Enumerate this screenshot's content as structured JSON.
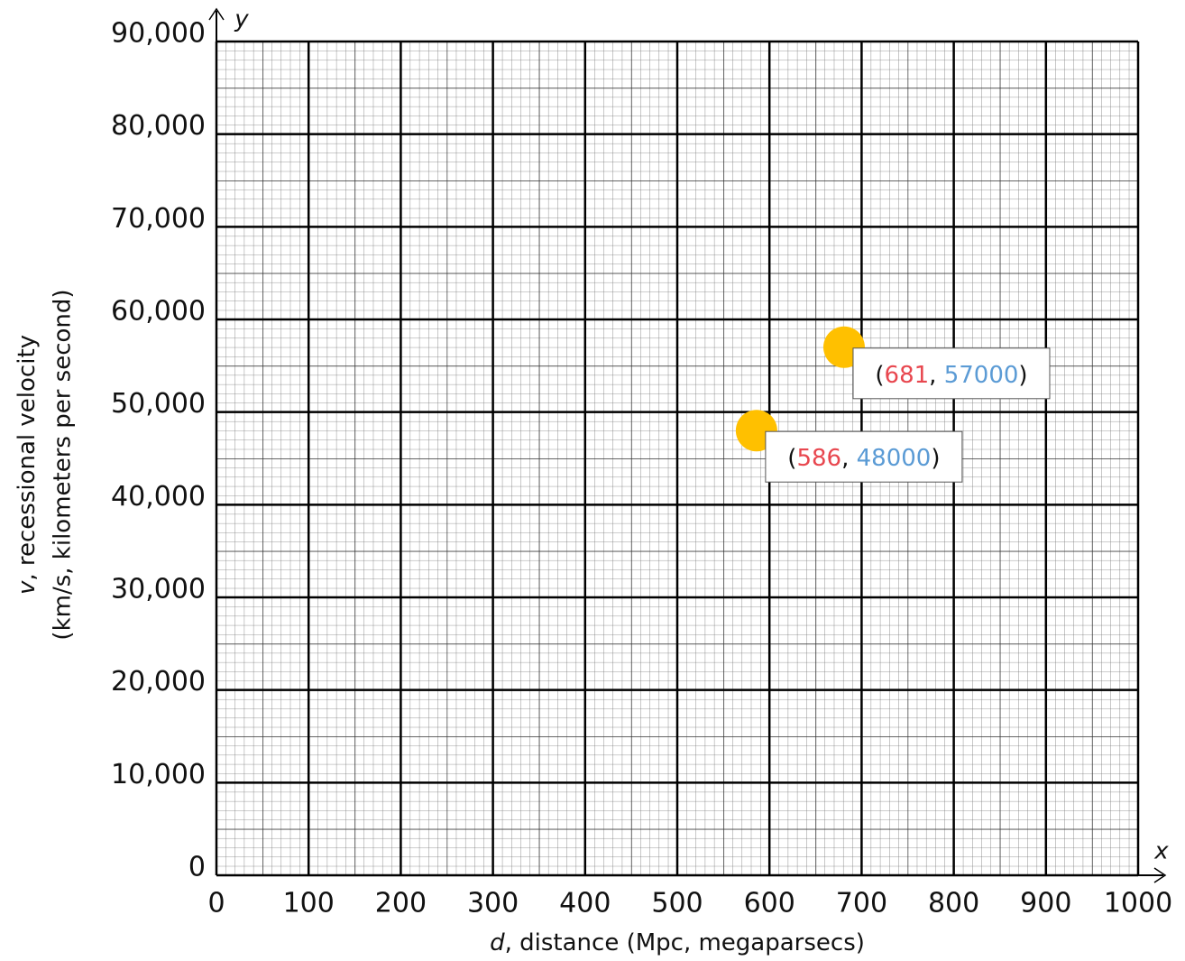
{
  "chart_data": {
    "type": "scatter",
    "x_axis_label_var": "d",
    "x_axis_label": ", distance (Mpc, megaparsecs)",
    "y_axis_label_var": "v",
    "y_axis_label": ", recessional velocity",
    "y_axis_label_line2": "(km/s, kilometers per second)",
    "x_axis_letter": "x",
    "y_axis_letter": "y",
    "xlim": [
      0,
      1000
    ],
    "xticks": [
      0,
      100,
      200,
      300,
      400,
      500,
      600,
      700,
      800,
      900,
      1000
    ],
    "ylim": [
      0,
      90000
    ],
    "yticks": [
      0,
      {
        "value": 10000,
        "label": "10,000"
      },
      {
        "value": 20000,
        "label": "20,000"
      },
      {
        "value": 30000,
        "label": "30,000"
      },
      {
        "value": 40000,
        "label": "40,000"
      },
      {
        "value": 50000,
        "label": "50,000"
      },
      {
        "value": 60000,
        "label": "60,000"
      },
      {
        "value": 70000,
        "label": "70,000"
      },
      {
        "value": 80000,
        "label": "80,000"
      },
      {
        "value": 90000,
        "label": "90,000"
      }
    ],
    "grid": true,
    "point_color": "#ffc000",
    "x_label_color": "#e8474f",
    "y_label_color": "#5b9bd5",
    "label_open": "(",
    "label_sep": ", ",
    "label_close": ")",
    "x": [
      681,
      586
    ],
    "values": [
      57000,
      48000
    ]
  }
}
